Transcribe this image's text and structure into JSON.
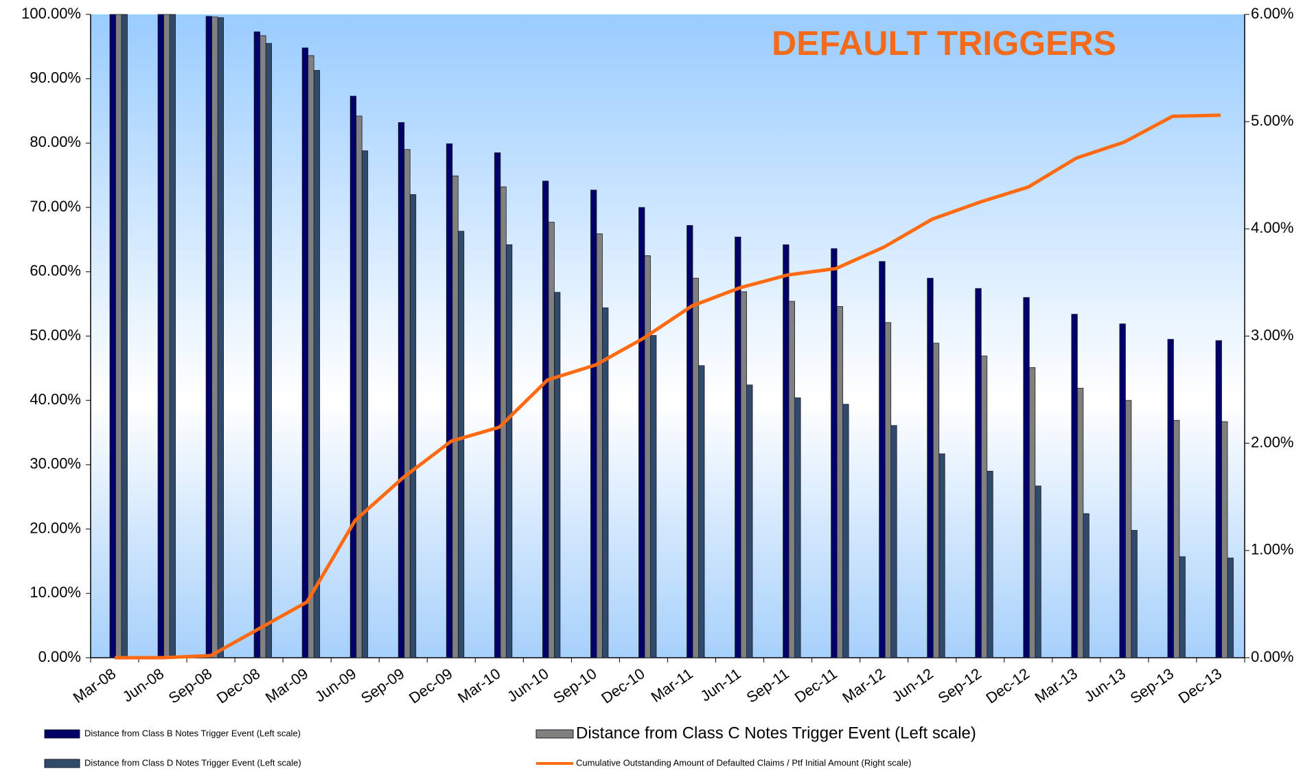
{
  "chart_data": {
    "type": "bar",
    "title": "DEFAULT TRIGGERS",
    "title_color": "#f26b1d",
    "categories": [
      "Mar-08",
      "Jun-08",
      "Sep-08",
      "Dec-08",
      "Mar-09",
      "Jun-09",
      "Sep-09",
      "Dec-09",
      "Mar-10",
      "Jun-10",
      "Sep-10",
      "Dec-10",
      "Mar-11",
      "Jun-11",
      "Sep-11",
      "Dec-11",
      "Mar-12",
      "Jun-12",
      "Sep-12",
      "Dec-12",
      "Mar-13",
      "Jun-13",
      "Sep-13",
      "Dec-13"
    ],
    "series": [
      {
        "name": "Distance from Class B Notes Trigger Event (Left scale)",
        "color": "#000066",
        "values": [
          100,
          100,
          99.7,
          97.3,
          94.8,
          87.3,
          83.2,
          79.9,
          78.5,
          74.1,
          72.7,
          70,
          67.2,
          65.4,
          64.2,
          63.6,
          61.6,
          59,
          57.4,
          56,
          53.4,
          51.9,
          49.5,
          49.3
        ]
      },
      {
        "name": "Distance from Class C Notes Trigger Event (Left scale)",
        "color": "#808080",
        "values": [
          100,
          100,
          99.6,
          96.7,
          93.6,
          84.2,
          79,
          74.9,
          73.2,
          67.7,
          65.9,
          62.5,
          59,
          56.9,
          55.4,
          54.6,
          52.1,
          48.9,
          46.9,
          45.1,
          41.9,
          40,
          36.9,
          36.7
        ]
      },
      {
        "name": "Distance from Class D Notes Trigger Event (Left scale)",
        "color": "#2f4a6a",
        "values": [
          100,
          100,
          99.5,
          95.5,
          91.3,
          78.8,
          72,
          66.3,
          64.2,
          56.8,
          54.4,
          50.1,
          45.4,
          42.4,
          40.4,
          39.4,
          36.1,
          31.7,
          29,
          26.7,
          22.4,
          19.8,
          15.7,
          15.5
        ]
      },
      {
        "name": "Cumulative Outstanding Amount of Defaulted Claims / Ptf Initial Amount (Right scale)",
        "color": "#ff6a13",
        "type": "line",
        "axis": "y2",
        "values": [
          0,
          0,
          0.02,
          0.27,
          0.52,
          1.28,
          1.68,
          2.02,
          2.15,
          2.59,
          2.73,
          2.98,
          3.28,
          3.45,
          3.57,
          3.63,
          3.83,
          4.09,
          4.25,
          4.39,
          4.66,
          4.81,
          5.05,
          5.06
        ]
      }
    ],
    "ylim": [
      0,
      100
    ],
    "yticks": [
      {
        "value": 0,
        "label": "0.00%"
      },
      {
        "value": 10,
        "label": "10.00%"
      },
      {
        "value": 20,
        "label": "20.00%"
      },
      {
        "value": 30,
        "label": "30.00%"
      },
      {
        "value": 40,
        "label": "40.00%"
      },
      {
        "value": 50,
        "label": "50.00%"
      },
      {
        "value": 60,
        "label": "60.00%"
      },
      {
        "value": 70,
        "label": "70.00%"
      },
      {
        "value": 80,
        "label": "80.00%"
      },
      {
        "value": 90,
        "label": "90.00%"
      },
      {
        "value": 100,
        "label": "100.00%"
      }
    ],
    "y2lim": [
      0,
      6
    ],
    "y2ticks": [
      {
        "value": 0,
        "label": "0.00%"
      },
      {
        "value": 1,
        "label": "1.00%"
      },
      {
        "value": 2,
        "label": "2.00%"
      },
      {
        "value": 3,
        "label": "3.00%"
      },
      {
        "value": 4,
        "label": "4.00%"
      },
      {
        "value": 5,
        "label": "5.00%"
      },
      {
        "value": 6,
        "label": "6.00%"
      }
    ],
    "grid": false
  }
}
